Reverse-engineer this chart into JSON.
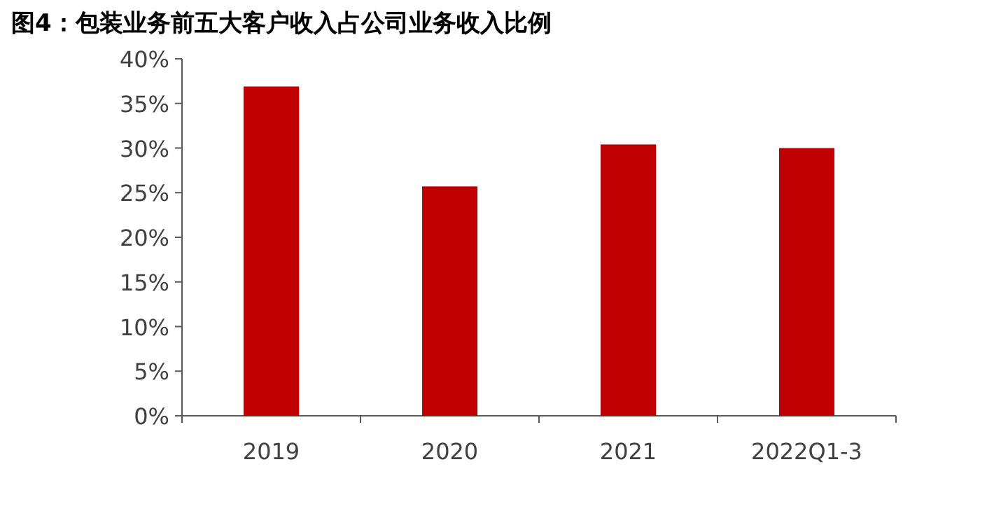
{
  "chart_data": {
    "type": "bar",
    "title": "图4：包装业务前五大客户收入占公司业务收入比例",
    "categories": [
      "2019",
      "2020",
      "2021",
      "2022Q1-3"
    ],
    "values": [
      36.9,
      25.7,
      30.4,
      30.0
    ],
    "color": "#c00000",
    "ylim": [
      0,
      40
    ],
    "yticks": [
      {
        "value": 0,
        "label": "0%"
      },
      {
        "value": 5,
        "label": "5%"
      },
      {
        "value": 10,
        "label": "10%"
      },
      {
        "value": 15,
        "label": "15%"
      },
      {
        "value": 20,
        "label": "20%"
      },
      {
        "value": 25,
        "label": "25%"
      },
      {
        "value": 30,
        "label": "30%"
      },
      {
        "value": 35,
        "label": "35%"
      },
      {
        "value": 40,
        "label": "40%"
      }
    ],
    "grid": false
  }
}
